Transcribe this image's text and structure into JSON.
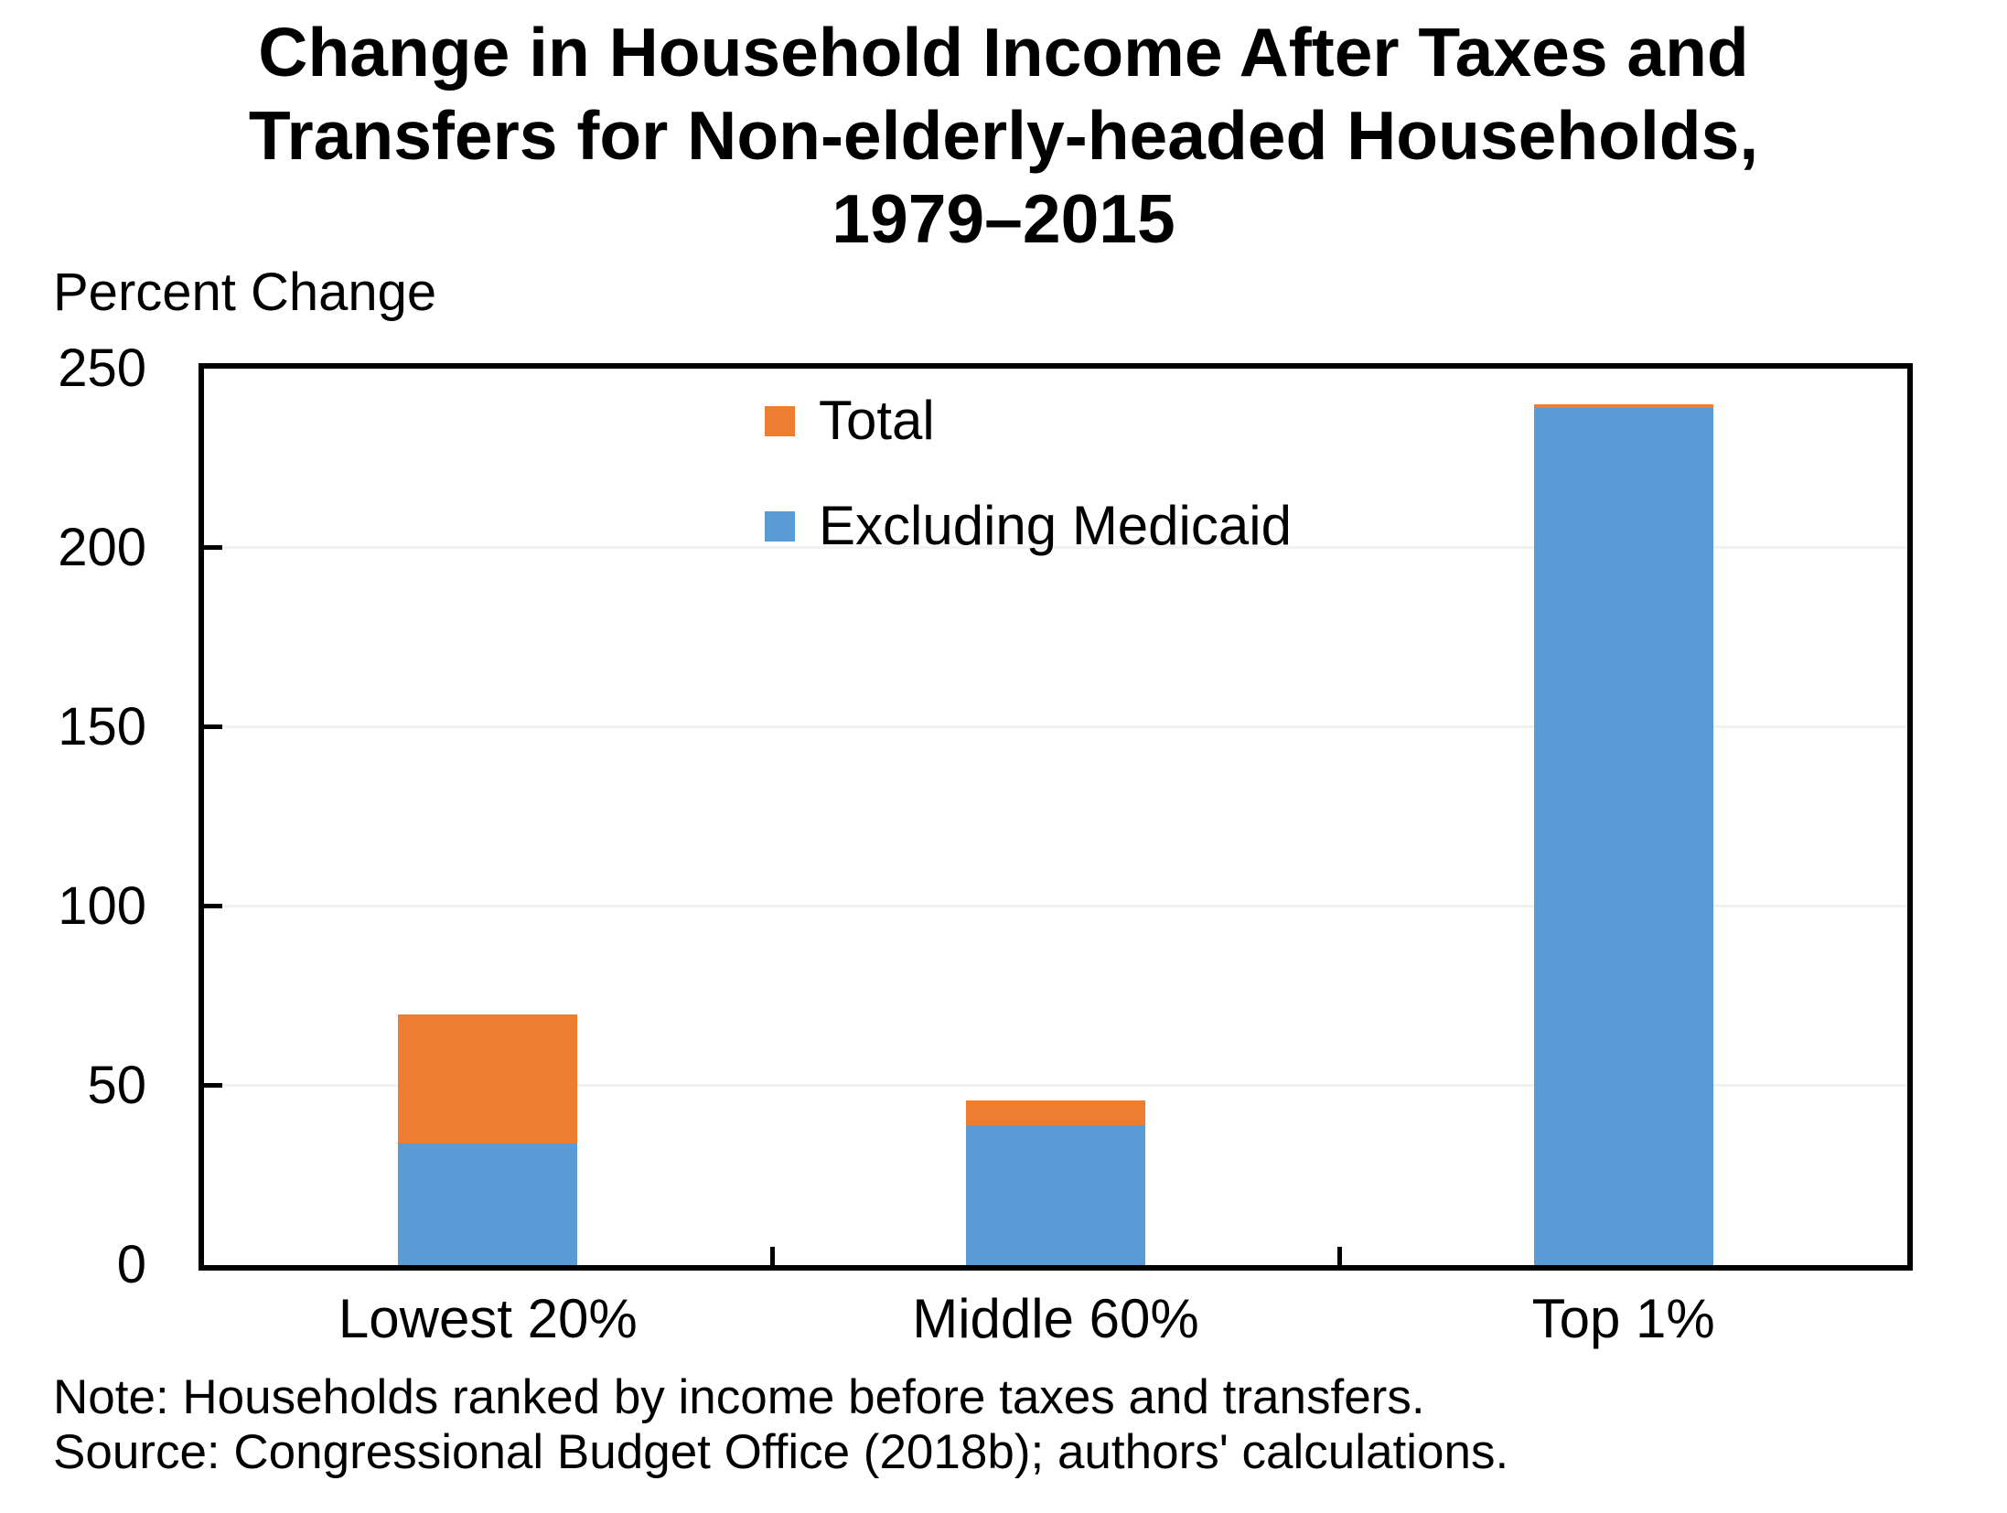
{
  "title_lines": [
    "Change in Household Income After Taxes and",
    "Transfers for Non-elderly-headed Households,",
    "1979–2015"
  ],
  "chart_data": {
    "type": "bar",
    "title": "Change in Household Income After Taxes and Transfers for Non-elderly-headed Households, 1979–2015",
    "categories": [
      "Lowest 20%",
      "Middle 60%",
      "Top 1%"
    ],
    "series": [
      {
        "name": "Total",
        "values": [
          70,
          46,
          240
        ],
        "color": "#ED7D31"
      },
      {
        "name": "Excluding Medicaid",
        "values": [
          34,
          39,
          239
        ],
        "color": "#5B9BD5"
      }
    ],
    "bar_style": "overlay (Total drawn behind, Excluding Medicaid drawn in front)",
    "ylabel": "Percent Change",
    "xlabel": "",
    "ylim": [
      0,
      250
    ],
    "yticks": [
      250,
      200,
      150,
      100,
      50,
      0
    ],
    "grid": "faint horizontal gridlines at each 50",
    "legend_position": "top-center inside plot",
    "note": "Note: Households ranked by income before taxes and transfers.",
    "source": "Source: Congressional Budget Office (2018b); authors' calculations."
  }
}
